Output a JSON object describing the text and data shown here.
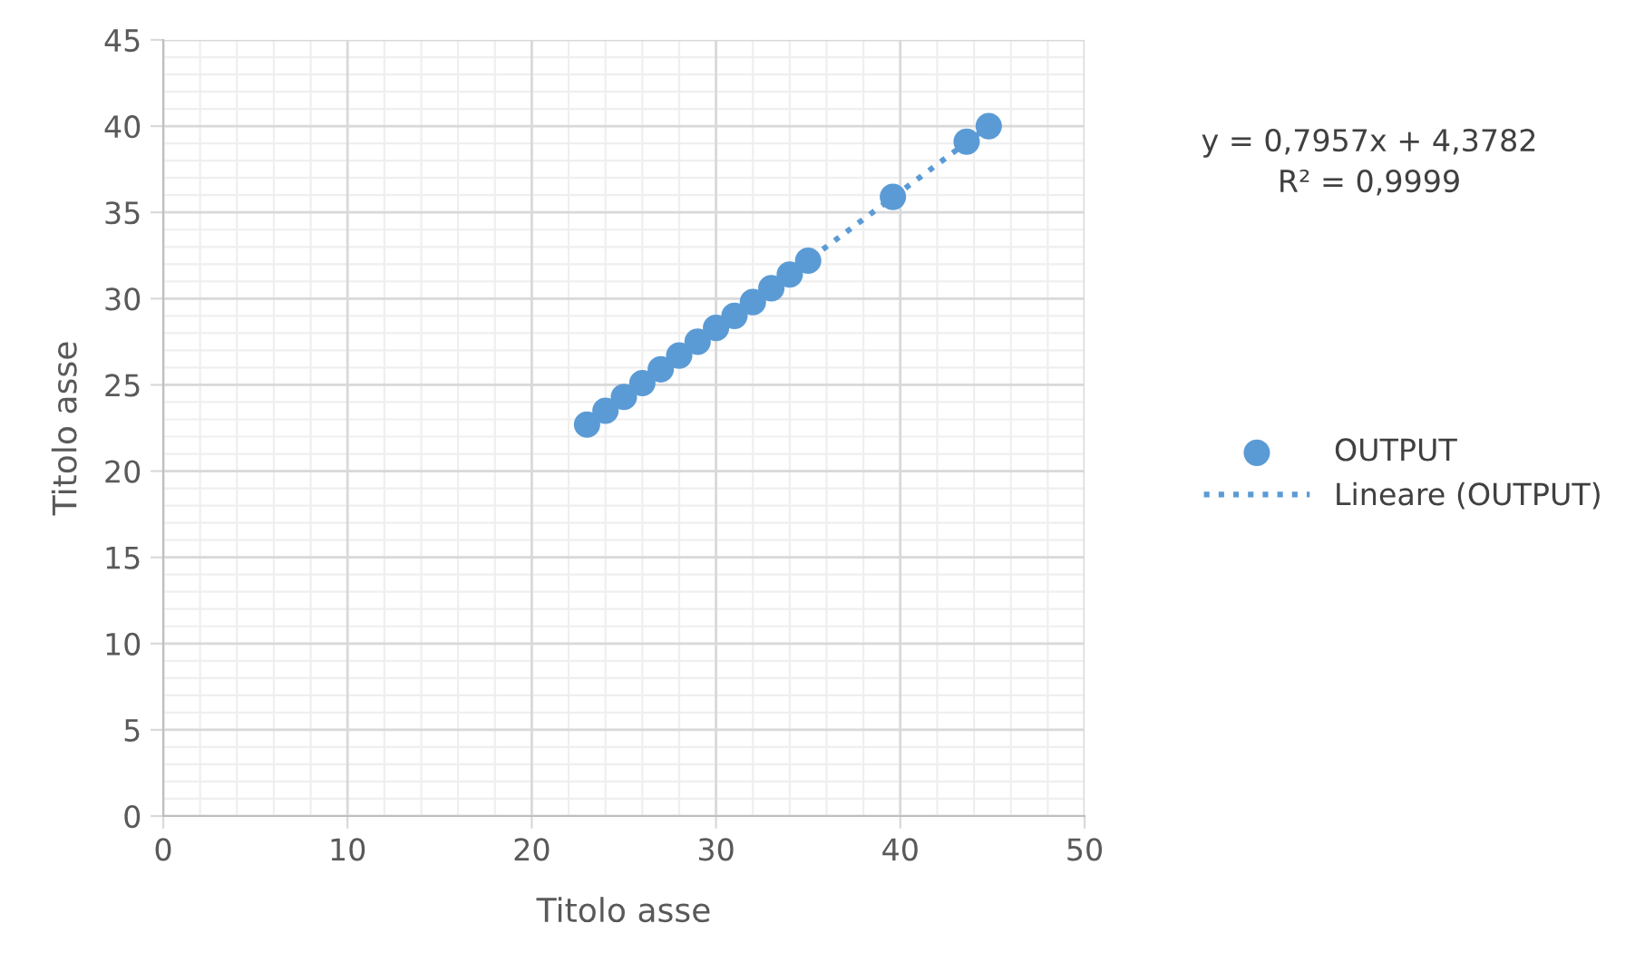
{
  "chart_data": {
    "type": "scatter",
    "xlabel": "Titolo asse",
    "ylabel": "Titolo asse",
    "xlim": [
      0,
      50
    ],
    "xticks": [
      0,
      10,
      20,
      30,
      40,
      50
    ],
    "ylim": [
      0,
      45
    ],
    "yticks": [
      0,
      5,
      10,
      15,
      20,
      25,
      30,
      35,
      40,
      45
    ],
    "grid": true,
    "legend": "right",
    "marker": "circle",
    "annotations": [
      "y = 0,7957x + 4,3782\nR² = 0,9999"
    ],
    "series": [
      {
        "name": "OUTPUT",
        "color": "#5b9bd5",
        "x": [
          23,
          24,
          25,
          26,
          27,
          28,
          29,
          30,
          31,
          32,
          33,
          34,
          35,
          39.6,
          43.6,
          44.8
        ],
        "values": [
          22.7,
          23.5,
          24.3,
          25.1,
          25.9,
          26.7,
          27.5,
          28.3,
          29.0,
          29.8,
          30.6,
          31.4,
          32.2,
          35.9,
          39.1,
          40.0
        ]
      },
      {
        "name": "Lineare (OUTPUT)",
        "type": "line",
        "line_style": "dotted",
        "marker": "none",
        "color": "#5b9bd5",
        "x": [
          23,
          44.8
        ],
        "values": [
          22.7,
          40.0
        ]
      }
    ]
  }
}
